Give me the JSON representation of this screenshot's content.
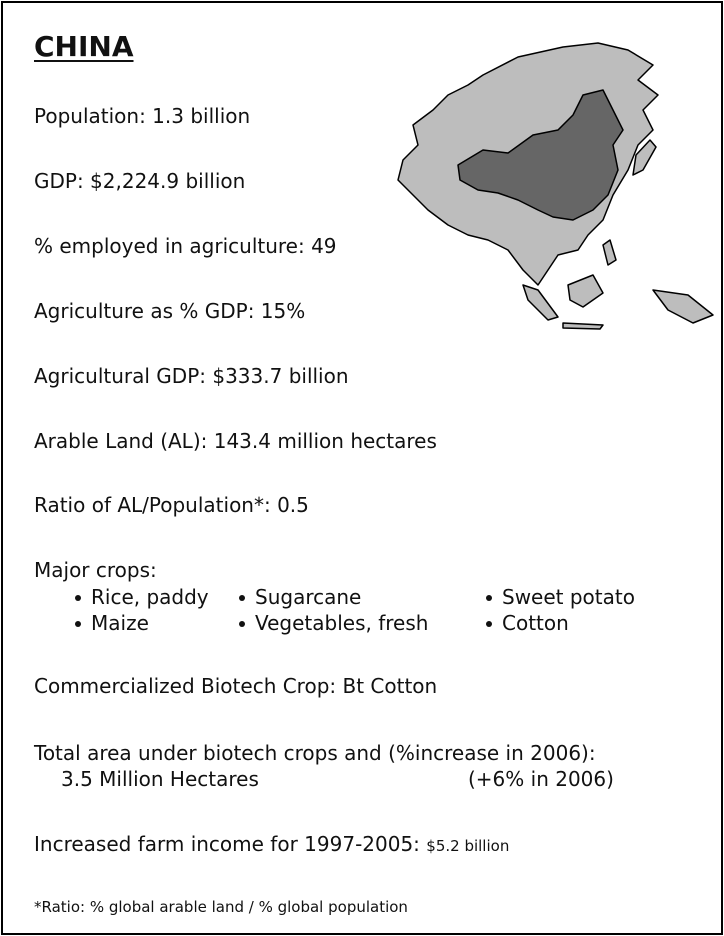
{
  "title": "CHINA",
  "facts": [
    "Population: 1.3 billion",
    "GDP: $2,224.9 billion",
    "% employed in agriculture: 49",
    "Agriculture as % GDP: 15%",
    "Agricultural GDP: $333.7 billion",
    "Arable Land (AL): 143.4 million hectares",
    "Ratio of AL/Population*:  0.5"
  ],
  "crops": {
    "heading": "Major crops:",
    "items": [
      "Rice, paddy",
      "Sugarcane",
      "Sweet potato",
      "Maize",
      "Vegetables, fresh",
      "Cotton"
    ]
  },
  "biotech_crop": "Commercialized Biotech Crop: Bt Cotton",
  "total_area": {
    "heading": "Total area under biotech crops and (%increase in 2006):",
    "area": "3.5 Million Hectares",
    "increase": "(+6% in 2006)"
  },
  "farm_income": {
    "label": "Increased farm income for 1997-2005:",
    "value": "$5.2 billion"
  },
  "footnote": "*Ratio: % global arable land / % global population"
}
